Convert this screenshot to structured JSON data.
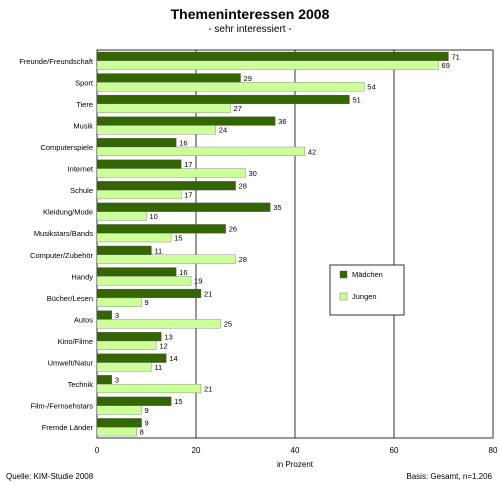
{
  "chart_data": {
    "type": "bar",
    "orientation": "horizontal",
    "title": "Themeninteressen 2008",
    "subtitle": "- sehr interessiert -",
    "xlabel": "in Prozent",
    "ylabel": "",
    "xlim": [
      0,
      80
    ],
    "xticks": [
      "0",
      "20",
      "40",
      "60",
      "80"
    ],
    "grid": true,
    "legend_placement": "right",
    "categories": [
      "Freunde/Freundschaft",
      "Sport",
      "Tiere",
      "Musik",
      "Computerspiele",
      "Internet",
      "Schule",
      "Kleidung/Mode",
      "Musikstars/Bands",
      "Computer/Zubehör",
      "Handy",
      "Bücher/Lesen",
      "Autos",
      "Kino/Filme",
      "Umwelt/Natur",
      "Technik",
      "Film-/Fernsehstars",
      "Fremde Länder"
    ],
    "series": [
      {
        "name": "Mädchen",
        "color": "#336600",
        "values": [
          71,
          29,
          51,
          36,
          16,
          17,
          28,
          35,
          26,
          11,
          16,
          21,
          3,
          13,
          14,
          3,
          15,
          9
        ]
      },
      {
        "name": "Jungen",
        "color": "#ccff99",
        "values": [
          69,
          54,
          27,
          24,
          42,
          30,
          17,
          10,
          15,
          28,
          19,
          9,
          25,
          12,
          11,
          21,
          9,
          8
        ]
      }
    ]
  },
  "footer": {
    "source": "Quelle: KIM-Studie 2008",
    "basis": "Basis: Gesamt, n=1.206"
  }
}
